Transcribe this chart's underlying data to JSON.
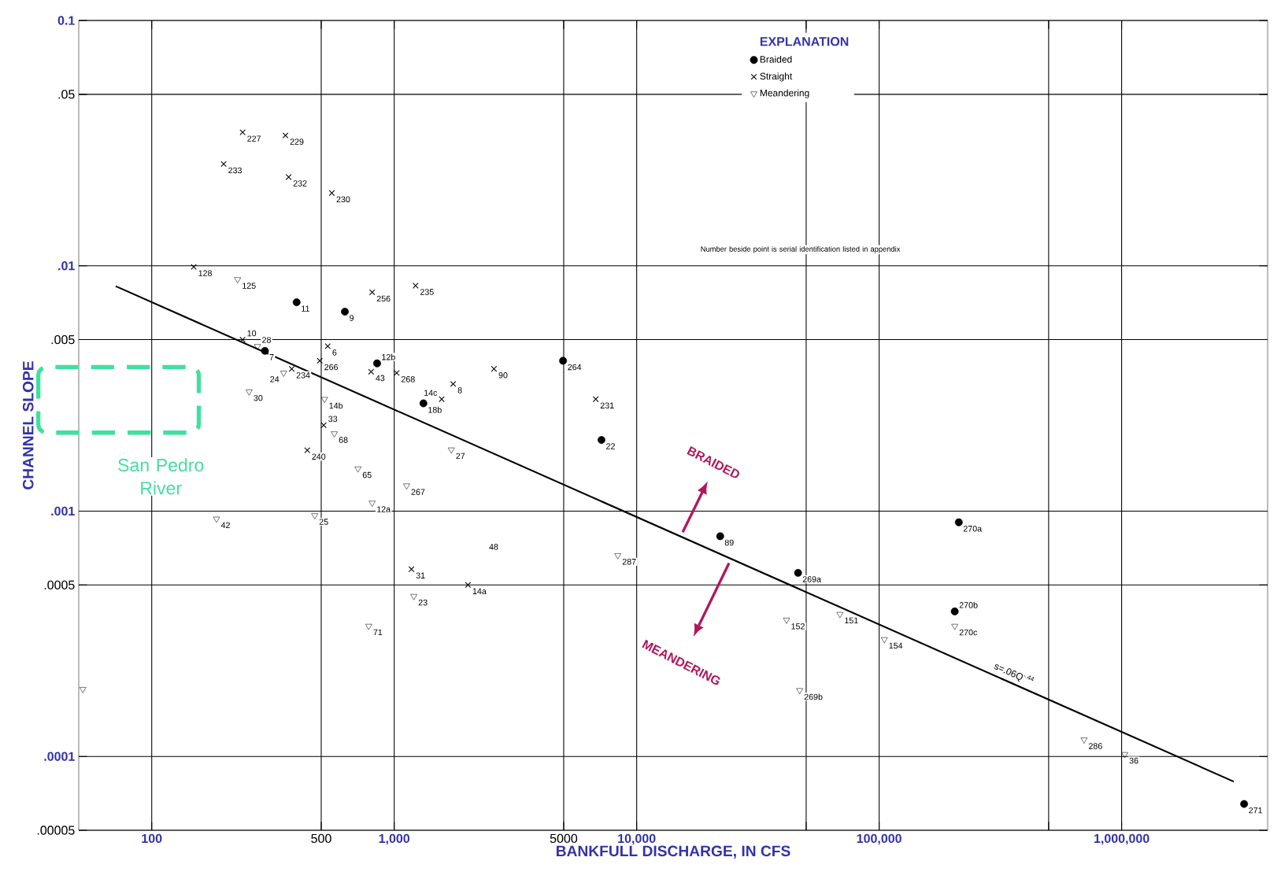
{
  "chart_data": {
    "type": "scatter",
    "xlabel": "BANKFULL DISCHARGE, IN CFS",
    "ylabel": "CHANNEL SLOPE",
    "legend_title": "EXPLANATION",
    "legend": "top",
    "grid": true,
    "log": "xy",
    "xlim": [
      50,
      4000000
    ],
    "ylim": [
      5e-05,
      0.1
    ],
    "xticks": [
      100,
      500,
      {
        "value": 1000,
        "label": "1,000"
      },
      5000,
      {
        "value": 10000,
        "label": "10,000"
      },
      {
        "value": 50000,
        "label": null
      },
      {
        "value": 100000,
        "label": "100,000"
      },
      {
        "value": 500000,
        "label": null
      },
      {
        "value": 1000000,
        "label": "1,000,000"
      }
    ],
    "yticks": [
      {
        "value": 5e-05,
        "label": ".00005"
      },
      {
        "value": 0.0001,
        "label": ".0001"
      },
      {
        "value": 0.0005,
        "label": ".0005"
      },
      {
        "value": 0.001,
        "label": ".001"
      },
      {
        "value": 0.005,
        "label": ".005"
      },
      {
        "value": 0.01,
        "label": ".01"
      },
      {
        "value": 0.05,
        "label": ".05"
      },
      0.1
    ],
    "series": [
      {
        "name": "Braided",
        "marker": "circle",
        "color": "#000000",
        "x": [
          396,
          626,
          293,
          850,
          1320,
          4970,
          7160,
          22100,
          46300,
          213000,
          205000,
          3200000
        ],
        "values": [
          0.0071,
          0.0065,
          0.0045,
          0.004,
          0.00275,
          0.0041,
          0.00195,
          0.00079,
          0.00056,
          0.0009,
          0.00039,
          6.4e-05
        ]
      },
      {
        "name": "Straight",
        "marker": "cross",
        "color": "#000000",
        "x": [
          237,
          356,
          198,
          367,
          553,
          149,
          811,
          1225,
          237,
          532,
          378,
          493,
          803,
          1024,
          1750,
          2580,
          1570,
          6780,
          512,
          438,
          1178,
          2015
        ],
        "values": [
          0.035,
          0.034,
          0.026,
          0.023,
          0.0198,
          0.0099,
          0.0078,
          0.0083,
          0.005,
          0.0047,
          0.0038,
          0.0041,
          0.0037,
          0.00366,
          0.0033,
          0.0038,
          0.00286,
          0.00286,
          0.00224,
          0.00177,
          0.00058,
          0.0005
        ]
      },
      {
        "name": "Meandering",
        "marker": "triangle",
        "color": "#000000",
        "x": [
          226,
          273,
          350,
          252,
          516,
          566,
          709,
          1720,
          811,
          1125,
          185,
          470,
          1205,
          785,
          8360,
          41500,
          68900,
          105000,
          205000,
          47000,
          700000,
          1030000,
          52
        ],
        "values": [
          0.0088,
          0.0047,
          0.00366,
          0.00307,
          0.00286,
          0.00207,
          0.00149,
          0.00178,
          0.00108,
          0.00127,
          0.00093,
          0.00096,
          0.00045,
          0.00034,
          0.00066,
          0.00036,
          0.00038,
          0.0003,
          0.00034,
          0.000186,
          0.000117,
          0.000102,
          0.000188
        ]
      },
      {
        "name": "s=.06Q$^{-.44}$",
        "type": "line",
        "marker": "none",
        "line_style": "solid",
        "color": "#000000",
        "x": [
          71,
          2900000
        ],
        "values": [
          0.00826,
          7.9e-05
        ]
      }
    ],
    "annotations": [
      "BRAIDED",
      "MEANDERING",
      "San Pedro River",
      "Number beside point is serial identification listed in appendix",
      "48",
      {
        "text": "11",
        "x": 396,
        "y": 0.0071
      },
      {
        "text": "9",
        "x": 626,
        "y": 0.0065
      },
      {
        "text": "7",
        "x": 293,
        "y": 0.0045
      },
      {
        "text": "12b",
        "x": 850,
        "y": 0.004
      },
      {
        "text": "18b",
        "x": 1320,
        "y": 0.00275
      },
      {
        "text": "264",
        "x": 4970,
        "y": 0.0041
      },
      {
        "text": "22",
        "x": 7160,
        "y": 0.00195
      },
      {
        "text": "89",
        "x": 22100,
        "y": 0.00079
      },
      {
        "text": "269a",
        "x": 46300,
        "y": 0.00056
      },
      {
        "text": "270a",
        "x": 213000,
        "y": 0.0009
      },
      {
        "text": "270b",
        "x": 205000,
        "y": 0.00039
      },
      {
        "text": "271",
        "x": 3200000,
        "y": 6.4e-05
      },
      {
        "text": "227",
        "x": 237,
        "y": 0.035
      },
      {
        "text": "229",
        "x": 356,
        "y": 0.034
      },
      {
        "text": "233",
        "x": 198,
        "y": 0.026
      },
      {
        "text": "232",
        "x": 367,
        "y": 0.023
      },
      {
        "text": "230",
        "x": 553,
        "y": 0.0198
      },
      {
        "text": "128",
        "x": 149,
        "y": 0.0099
      },
      {
        "text": "256",
        "x": 811,
        "y": 0.0078
      },
      {
        "text": "235",
        "x": 1225,
        "y": 0.0083
      },
      {
        "text": "10",
        "x": 237,
        "y": 0.005
      },
      {
        "text": "6",
        "x": 532,
        "y": 0.0047
      },
      {
        "text": "234",
        "x": 378,
        "y": 0.0038
      },
      {
        "text": "266",
        "x": 493,
        "y": 0.0041
      },
      {
        "text": "43",
        "x": 803,
        "y": 0.0037
      },
      {
        "text": "268",
        "x": 1024,
        "y": 0.00366
      },
      {
        "text": "8",
        "x": 1750,
        "y": 0.0033
      },
      {
        "text": "90",
        "x": 2580,
        "y": 0.0038
      },
      {
        "text": "14c",
        "x": 1570,
        "y": 0.00286
      },
      {
        "text": "231",
        "x": 6780,
        "y": 0.00286
      },
      {
        "text": "33",
        "x": 512,
        "y": 0.00224
      },
      {
        "text": "240",
        "x": 438,
        "y": 0.00177
      },
      {
        "text": "31",
        "x": 1178,
        "y": 0.00058
      },
      {
        "text": "14a",
        "x": 2015,
        "y": 0.0005
      },
      {
        "text": "125",
        "x": 226,
        "y": 0.0088
      },
      {
        "text": "28",
        "x": 273,
        "y": 0.0047
      },
      {
        "text": "24",
        "x": 350,
        "y": 0.00366
      },
      {
        "text": "30",
        "x": 252,
        "y": 0.00307
      },
      {
        "text": "14b",
        "x": 516,
        "y": 0.00286
      },
      {
        "text": "68",
        "x": 566,
        "y": 0.00207
      },
      {
        "text": "65",
        "x": 709,
        "y": 0.00149
      },
      {
        "text": "27",
        "x": 1720,
        "y": 0.00178
      },
      {
        "text": "12a",
        "x": 811,
        "y": 0.00108
      },
      {
        "text": "267",
        "x": 1125,
        "y": 0.00127
      },
      {
        "text": "42",
        "x": 185,
        "y": 0.00093
      },
      {
        "text": "25",
        "x": 470,
        "y": 0.00096
      },
      {
        "text": "23",
        "x": 1205,
        "y": 0.00045
      },
      {
        "text": "71",
        "x": 785,
        "y": 0.00034
      },
      {
        "text": "287",
        "x": 8360,
        "y": 0.00066
      },
      {
        "text": "152",
        "x": 41500,
        "y": 0.00036
      },
      {
        "text": "151",
        "x": 68900,
        "y": 0.00038
      },
      {
        "text": "154",
        "x": 105000,
        "y": 0.0003
      },
      {
        "text": "270c",
        "x": 205000,
        "y": 0.00034
      },
      {
        "text": "269b",
        "x": 47000,
        "y": 0.000186
      },
      {
        "text": "286",
        "x": 700000,
        "y": 0.000117
      },
      {
        "text": "36",
        "x": 1030000,
        "y": 0.000102
      }
    ]
  }
}
